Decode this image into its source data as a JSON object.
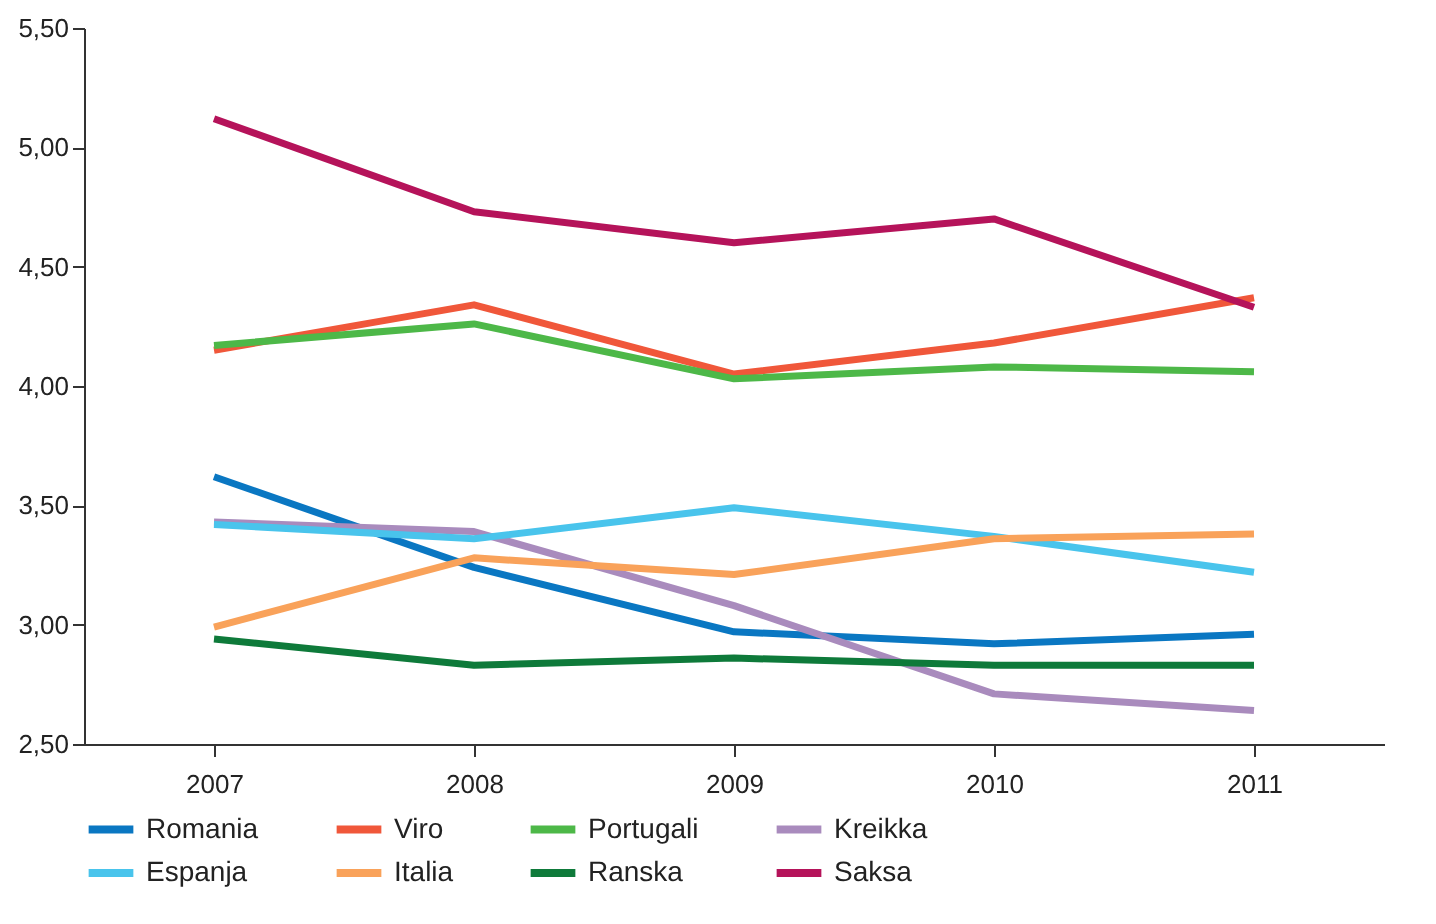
{
  "chart_data": {
    "type": "line",
    "categories": [
      "2007",
      "2008",
      "2009",
      "2010",
      "2011"
    ],
    "series": [
      {
        "name": "Romania",
        "color": "#0a77c2",
        "values": [
          3.62,
          3.24,
          2.97,
          2.92,
          2.96
        ]
      },
      {
        "name": "Viro",
        "color": "#f0573a",
        "values": [
          4.15,
          4.34,
          4.05,
          4.18,
          4.37
        ]
      },
      {
        "name": "Portugali",
        "color": "#4db848",
        "values": [
          4.17,
          4.26,
          4.03,
          4.08,
          4.06
        ]
      },
      {
        "name": "Kreikka",
        "color": "#a98bbd",
        "values": [
          3.43,
          3.39,
          3.08,
          2.71,
          2.64
        ]
      },
      {
        "name": "Espanja",
        "color": "#49c4ec",
        "values": [
          3.42,
          3.36,
          3.49,
          3.37,
          3.22
        ]
      },
      {
        "name": "Italia",
        "color": "#f9a25a",
        "values": [
          2.99,
          3.28,
          3.21,
          3.36,
          3.38
        ]
      },
      {
        "name": "Ranska",
        "color": "#0e7a3a",
        "values": [
          2.94,
          2.83,
          2.86,
          2.83,
          2.83
        ]
      },
      {
        "name": "Saksa",
        "color": "#b5135a",
        "values": [
          5.12,
          4.73,
          4.6,
          4.7,
          4.33
        ]
      }
    ],
    "ylim": [
      2.5,
      5.5
    ],
    "yticks": [
      {
        "value": 2.5,
        "label": "2,50"
      },
      {
        "value": 3,
        "label": "3,00"
      },
      {
        "value": 3.5,
        "label": "3,50"
      },
      {
        "value": 4,
        "label": "4,00"
      },
      {
        "value": 4.5,
        "label": "4,50"
      },
      {
        "value": 5,
        "label": "5,00"
      },
      {
        "value": 5.5,
        "label": "5,50"
      }
    ],
    "grid": false,
    "legend": "bottom",
    "marker": "none",
    "line_style": "solid"
  }
}
